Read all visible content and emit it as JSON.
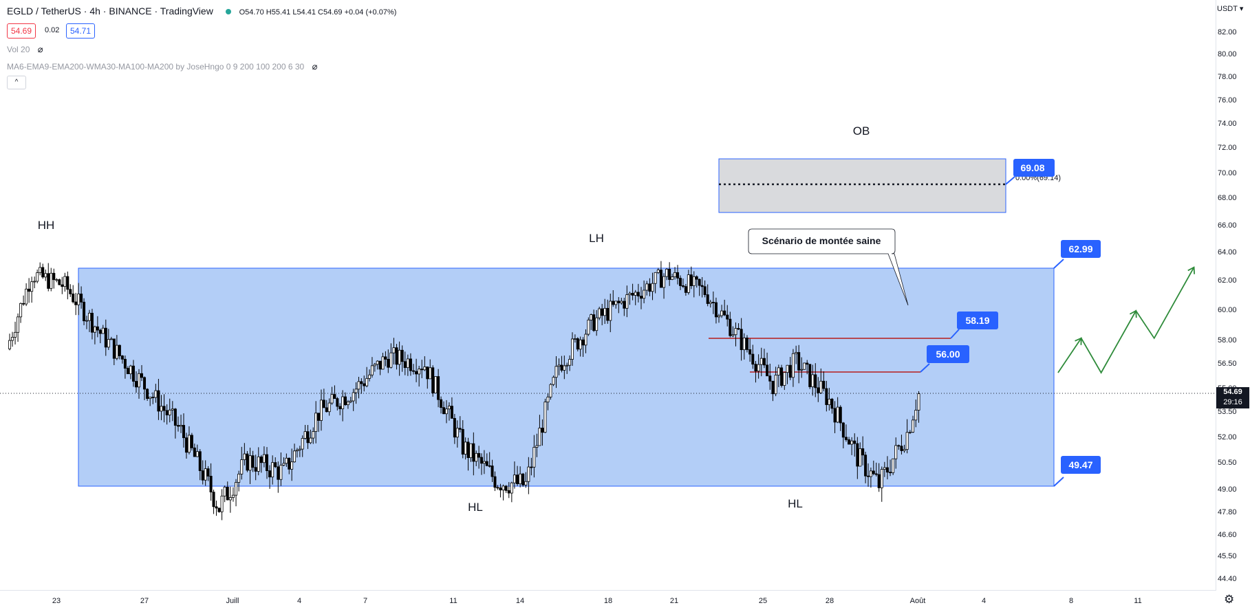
{
  "header": {
    "symbol": "EGLD / TetherUS · 4h · BINANCE · TradingView",
    "ohlc": {
      "open_label": "O",
      "open": "54.70",
      "high_label": "H",
      "high": "55.41",
      "low_label": "L",
      "low": "54.41",
      "close_label": "C",
      "close": "54.69",
      "change": "+0.04 (+0.07%)"
    },
    "bid": "54.69",
    "spread": "0.02",
    "ask": "54.71"
  },
  "indicators": {
    "volume": "Vol 20",
    "ma": "MA6-EMA9-EMA200-WMA30-MA100-MA200 by JoseHngo 0 9 200 100 200 6 30"
  },
  "collapse_button": "^",
  "price_axis": {
    "currency": "USDT",
    "ticks": [
      "82.00",
      "80.00",
      "78.00",
      "76.00",
      "74.00",
      "72.00",
      "70.00",
      "68.00",
      "66.00",
      "64.00",
      "62.00",
      "60.00",
      "58.00",
      "56.50",
      "55.00",
      "53.50",
      "52.00",
      "50.50",
      "49.00",
      "47.80",
      "46.60",
      "45.50",
      "44.40"
    ],
    "current_price": "54.69",
    "countdown": "29:16"
  },
  "time_axis": {
    "labels": [
      "23",
      "27",
      "Juill",
      "4",
      "7",
      "11",
      "14",
      "18",
      "21",
      "25",
      "28",
      "Août",
      "4",
      "8",
      "11"
    ]
  },
  "annotations": {
    "hh": "HH",
    "lh": "LH",
    "hl1": "HL",
    "hl2": "HL",
    "ob": "OB",
    "scenario": "Scénario de montée saine",
    "level_69": "69.08",
    "level_69_sub": "0.00%(69.14)",
    "level_63": "62.99",
    "level_58": "58.19",
    "level_56": "56.00",
    "level_49": "49.47"
  },
  "colors": {
    "range_fill": "#b3cef7",
    "range_border": "#2962ff",
    "label_bg": "#2962ff",
    "resistance": "#b71c1c",
    "scenario_arrow": "#2e8b3a",
    "ob_fill": "#d9dadd",
    "up_candle": "#ffffff",
    "down_candle": "#000000",
    "bid_color": "#f23645",
    "ask_color": "#2962ff"
  },
  "chart_data": {
    "type": "candlestick",
    "symbol": "EGLD/USDT",
    "timeframe": "4h",
    "price_range": [
      44.4,
      82.0
    ],
    "current_close": 54.69,
    "range_box": {
      "top": 62.99,
      "bottom": 49.47
    },
    "order_block": {
      "top": 70.9,
      "bottom": 67.3,
      "mid": 69.08
    },
    "resistance_levels": [
      58.19,
      56.0
    ],
    "closes_path": [
      [
        0,
        57.5
      ],
      [
        1.5,
        62.5
      ],
      [
        3.5,
        61.7
      ],
      [
        5.8,
        58.3
      ],
      [
        8.3,
        55.2
      ],
      [
        10.5,
        52.4
      ],
      [
        12.8,
        48.1
      ],
      [
        14.5,
        50.7
      ],
      [
        16.7,
        50.0
      ],
      [
        18.8,
        53.5
      ],
      [
        20.9,
        54.9
      ],
      [
        23.0,
        57.0
      ],
      [
        25.2,
        56.5
      ],
      [
        27.5,
        51.5
      ],
      [
        29.6,
        49.5
      ],
      [
        31.3,
        49.3
      ],
      [
        33.3,
        56.5
      ],
      [
        35.4,
        59.3
      ],
      [
        37.4,
        60.8
      ],
      [
        39.8,
        62.5
      ],
      [
        42.1,
        61.3
      ],
      [
        44.3,
        58.0
      ],
      [
        46.2,
        55.3
      ],
      [
        47.6,
        56.7
      ],
      [
        49.6,
        54.3
      ],
      [
        51.3,
        50.9
      ],
      [
        52.6,
        49.3
      ],
      [
        54.3,
        52.3
      ],
      [
        55.0,
        54.69
      ]
    ],
    "scenario_path": [
      [
        55.0,
        56.0
      ],
      [
        56.4,
        58.19
      ],
      [
        57.6,
        56.0
      ],
      [
        59.7,
        60.0
      ],
      [
        60.8,
        58.19
      ],
      [
        63.2,
        62.99
      ]
    ]
  }
}
